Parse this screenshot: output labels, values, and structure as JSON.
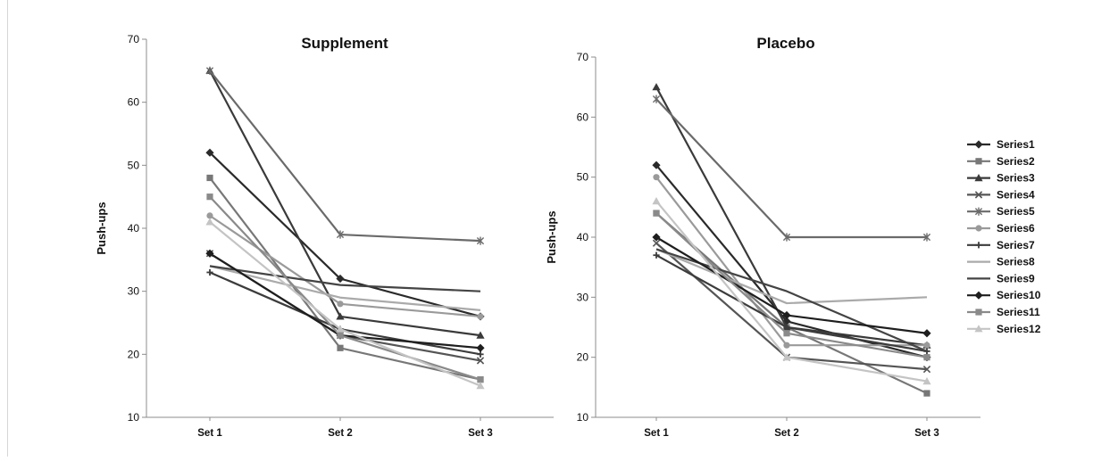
{
  "chart_data": [
    {
      "type": "line",
      "title": "Supplement",
      "xlabel": "",
      "ylabel": "Push-ups",
      "categories": [
        "Set 1",
        "Set 2",
        "Set 3"
      ],
      "ylim": [
        10,
        70
      ],
      "yticks": [
        10,
        20,
        30,
        40,
        50,
        60,
        70
      ],
      "grid": false,
      "series": [
        {
          "name": "Series1",
          "values": [
            52,
            32,
            26
          ],
          "color": "#2a2a2a",
          "marker": "diamond"
        },
        {
          "name": "Series2",
          "values": [
            48,
            21,
            16
          ],
          "color": "#777777",
          "marker": "square"
        },
        {
          "name": "Series3",
          "values": [
            65,
            26,
            23
          ],
          "color": "#3a3a3a",
          "marker": "triangle"
        },
        {
          "name": "Series4",
          "values": [
            36,
            23,
            19
          ],
          "color": "#555555",
          "marker": "x"
        },
        {
          "name": "Series5",
          "values": [
            65,
            39,
            38
          ],
          "color": "#6a6a6a",
          "marker": "star"
        },
        {
          "name": "Series6",
          "values": [
            42,
            28,
            26
          ],
          "color": "#9a9a9a",
          "marker": "circle"
        },
        {
          "name": "Series7",
          "values": [
            33,
            24,
            20
          ],
          "color": "#3c3c3c",
          "marker": "plus"
        },
        {
          "name": "Series8",
          "values": [
            34,
            29,
            27
          ],
          "color": "#aaaaaa",
          "marker": "none"
        },
        {
          "name": "Series9",
          "values": [
            34,
            31,
            30
          ],
          "color": "#444444",
          "marker": "none"
        },
        {
          "name": "Series10",
          "values": [
            36,
            23,
            21
          ],
          "color": "#1e1e1e",
          "marker": "diamond"
        },
        {
          "name": "Series11",
          "values": [
            45,
            23,
            16
          ],
          "color": "#8a8a8a",
          "marker": "square"
        },
        {
          "name": "Series12",
          "values": [
            41,
            24,
            15
          ],
          "color": "#c4c4c4",
          "marker": "triangle"
        }
      ]
    },
    {
      "type": "line",
      "title": "Placebo",
      "xlabel": "",
      "ylabel": "Push-ups",
      "categories": [
        "Set 1",
        "Set 2",
        "Set 3"
      ],
      "ylim": [
        10,
        70
      ],
      "yticks": [
        10,
        20,
        30,
        40,
        50,
        60,
        70
      ],
      "grid": false,
      "legend_position": "right",
      "series": [
        {
          "name": "Series1",
          "values": [
            52,
            26,
            20
          ],
          "color": "#2a2a2a",
          "marker": "diamond"
        },
        {
          "name": "Series2",
          "values": [
            44,
            25,
            14
          ],
          "color": "#777777",
          "marker": "square"
        },
        {
          "name": "Series3",
          "values": [
            65,
            25,
            22
          ],
          "color": "#3a3a3a",
          "marker": "triangle"
        },
        {
          "name": "Series4",
          "values": [
            39,
            20,
            18
          ],
          "color": "#555555",
          "marker": "x"
        },
        {
          "name": "Series5",
          "values": [
            63,
            40,
            40
          ],
          "color": "#6a6a6a",
          "marker": "star"
        },
        {
          "name": "Series6",
          "values": [
            50,
            22,
            22
          ],
          "color": "#9a9a9a",
          "marker": "circle"
        },
        {
          "name": "Series7",
          "values": [
            37,
            25,
            21
          ],
          "color": "#3c3c3c",
          "marker": "plus"
        },
        {
          "name": "Series8",
          "values": [
            38,
            29,
            30
          ],
          "color": "#aaaaaa",
          "marker": "none"
        },
        {
          "name": "Series9",
          "values": [
            38,
            31,
            21
          ],
          "color": "#444444",
          "marker": "none"
        },
        {
          "name": "Series10",
          "values": [
            40,
            27,
            24
          ],
          "color": "#1e1e1e",
          "marker": "diamond"
        },
        {
          "name": "Series11",
          "values": [
            44,
            24,
            20
          ],
          "color": "#8a8a8a",
          "marker": "square"
        },
        {
          "name": "Series12",
          "values": [
            46,
            20,
            16
          ],
          "color": "#c4c4c4",
          "marker": "triangle"
        }
      ]
    }
  ]
}
